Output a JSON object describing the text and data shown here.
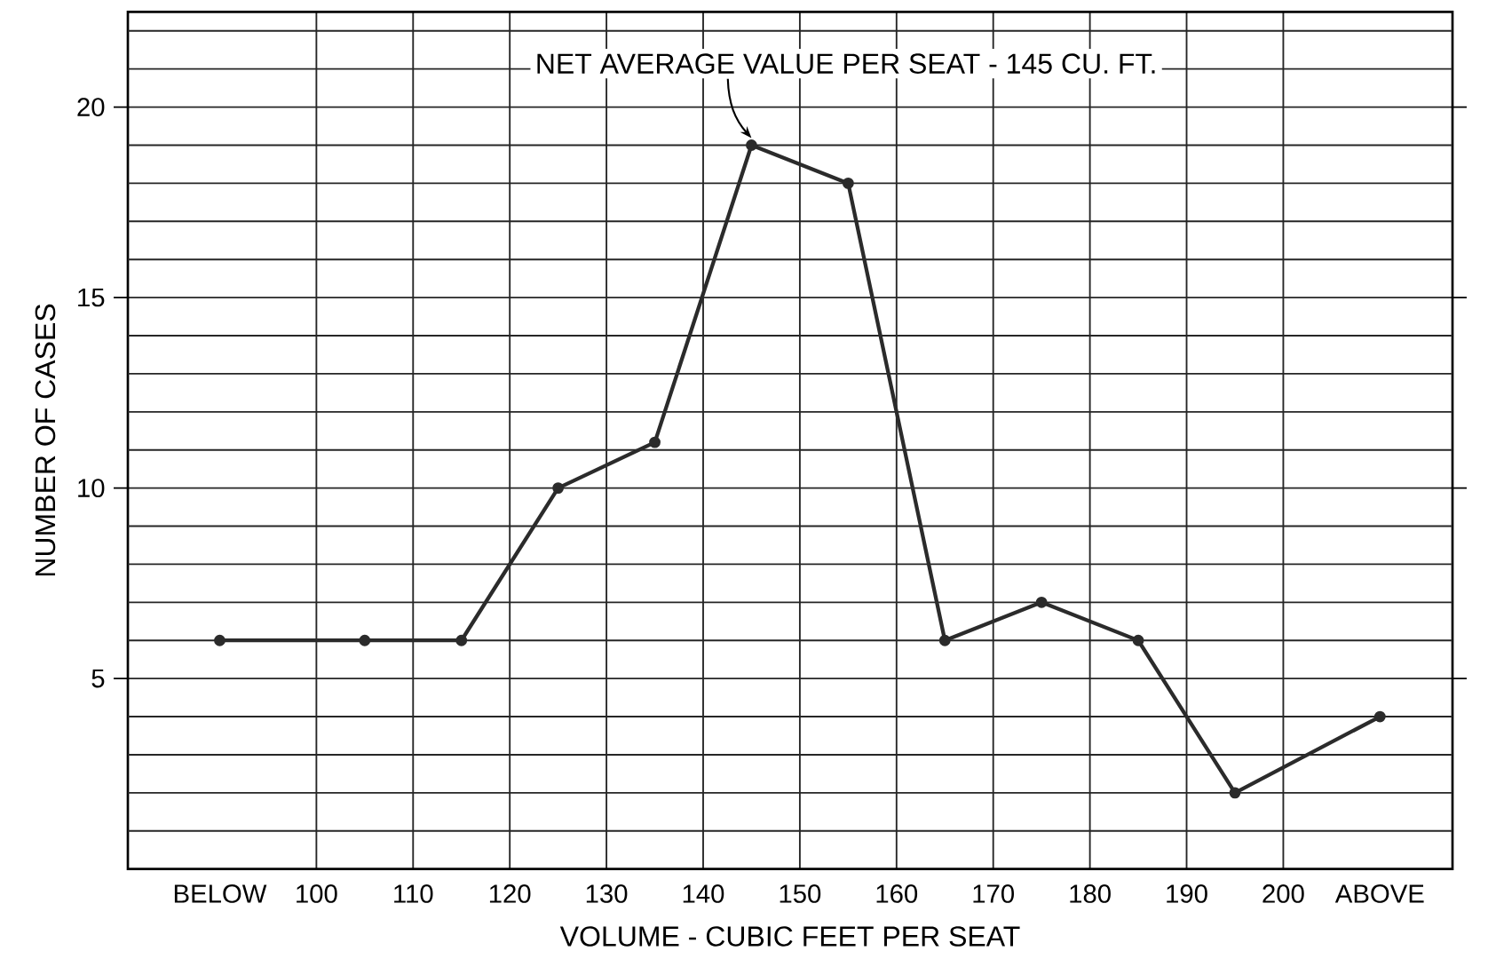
{
  "chart_data": {
    "type": "line",
    "xlabel": "VOLUME - CUBIC FEET PER SEAT",
    "ylabel": "NUMBER OF CASES",
    "x": [
      90,
      105,
      115,
      125,
      135,
      145,
      155,
      165,
      175,
      185,
      195,
      210
    ],
    "series": [
      {
        "color": "#2b2b2b",
        "values": [
          6,
          6,
          6,
          10,
          11.2,
          19,
          18,
          6,
          7,
          6,
          2,
          4
        ]
      }
    ],
    "xlim": [
      80.5,
      217.5
    ],
    "ylim": [
      0,
      22.5
    ],
    "xticks": [
      {
        "value": 90,
        "label": "BELOW"
      },
      100,
      110,
      120,
      130,
      140,
      150,
      160,
      170,
      180,
      190,
      200,
      {
        "value": 210,
        "label": "ABOVE"
      }
    ],
    "yticks": [
      {
        "value": 1,
        "label": null
      },
      {
        "value": 2,
        "label": null
      },
      {
        "value": 3,
        "label": null
      },
      {
        "value": 4,
        "label": null
      },
      5,
      {
        "value": 6,
        "label": null
      },
      {
        "value": 7,
        "label": null
      },
      {
        "value": 8,
        "label": null
      },
      {
        "value": 9,
        "label": null
      },
      10,
      {
        "value": 11,
        "label": null
      },
      {
        "value": 12,
        "label": null
      },
      {
        "value": 13,
        "label": null
      },
      {
        "value": 14,
        "label": null
      },
      15,
      {
        "value": 16,
        "label": null
      },
      {
        "value": 17,
        "label": null
      },
      {
        "value": 18,
        "label": null
      },
      {
        "value": 19,
        "label": null
      },
      20,
      {
        "value": 21,
        "label": null
      },
      {
        "value": 22,
        "label": null
      }
    ],
    "annotations": [
      {
        "text": "NET AVERAGE VALUE PER SEAT - 145 CU. FT.",
        "x": 145,
        "y": 19
      }
    ],
    "grid": true,
    "marker": "circle",
    "line_style": "solid"
  }
}
